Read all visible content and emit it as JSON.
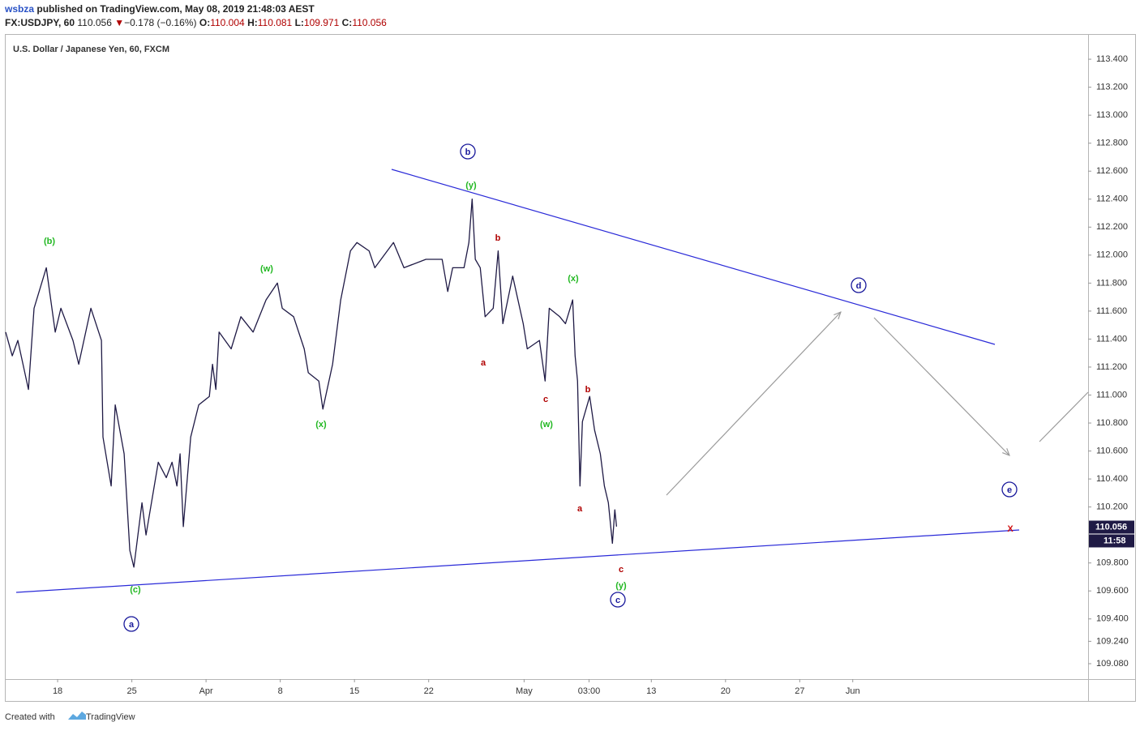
{
  "header": {
    "author": "wsbza",
    "published": "published on TradingView.com, May 08, 2019 21:48:03 AEST",
    "symbol": "FX:USDJPY, 60",
    "last": "110.056",
    "arrow": "▼",
    "change": "−0.178 (−0.16%)",
    "ohlc": [
      {
        "label": "O:",
        "value": "110.004"
      },
      {
        "label": "H:",
        "value": "110.081"
      },
      {
        "label": "L:",
        "value": "109.971"
      },
      {
        "label": "C:",
        "value": "110.056"
      }
    ]
  },
  "footer": {
    "created": "Created with",
    "brand": "TradingView"
  },
  "chart_data": {
    "type": "line",
    "title": "U.S. Dollar / Japanese Yen, 60, FXCM",
    "xlim": [
      13.1,
      115.2
    ],
    "xticks": [
      18,
      25,
      {
        "value": 32,
        "label": "Apr"
      },
      {
        "value": 39,
        "label": "8"
      },
      {
        "value": 46,
        "label": "15"
      },
      {
        "value": 53,
        "label": "22"
      },
      {
        "value": 62,
        "label": "May"
      },
      {
        "value": 68.125,
        "label": "03:00"
      },
      {
        "value": 74,
        "label": "13"
      },
      {
        "value": 81,
        "label": "20"
      },
      {
        "value": 88,
        "label": "27"
      },
      {
        "value": 93,
        "label": "Jun"
      }
    ],
    "ylim": [
      108.97,
      113.58
    ],
    "yticks": [
      {
        "value": 113.4,
        "label": "113.400"
      },
      {
        "value": 113.2,
        "label": "113.200"
      },
      {
        "value": 113.0,
        "label": "113.000"
      },
      {
        "value": 112.8,
        "label": "112.800"
      },
      {
        "value": 112.6,
        "label": "112.600"
      },
      {
        "value": 112.4,
        "label": "112.400"
      },
      {
        "value": 112.2,
        "label": "112.200"
      },
      {
        "value": 112.0,
        "label": "112.000"
      },
      {
        "value": 111.8,
        "label": "111.800"
      },
      {
        "value": 111.6,
        "label": "111.600"
      },
      {
        "value": 111.4,
        "label": "111.400"
      },
      {
        "value": 111.2,
        "label": "111.200"
      },
      {
        "value": 111.0,
        "label": "111.000"
      },
      {
        "value": 110.8,
        "label": "110.800"
      },
      {
        "value": 110.6,
        "label": "110.600"
      },
      {
        "value": 110.4,
        "label": "110.400"
      },
      {
        "value": 110.2,
        "label": "110.200"
      },
      {
        "value": 109.8,
        "label": "109.800"
      },
      {
        "value": 109.6,
        "label": "109.600"
      },
      {
        "value": 109.4,
        "label": "109.400"
      },
      {
        "value": 109.24,
        "label": "109.240"
      },
      {
        "value": 109.08,
        "label": "109.080"
      }
    ],
    "grid": false,
    "last_price": {
      "value": 110.056,
      "label": "110.056"
    },
    "countdown": "11:58",
    "series": [
      {
        "name": "USDJPY",
        "color": "#1f1a45",
        "x": [
          13.1,
          13.72,
          14.25,
          15.25,
          15.78,
          16.93,
          17.77,
          18.31,
          19.45,
          19.99,
          21.14,
          22.13,
          22.28,
          23.05,
          23.43,
          24.27,
          24.81,
          25.19,
          25.96,
          26.34,
          27.49,
          28.25,
          28.79,
          29.25,
          29.55,
          29.86,
          30.55,
          31.31,
          32.31,
          32.61,
          32.92,
          33.23,
          34.37,
          35.29,
          36.44,
          37.66,
          38.73,
          39.19,
          40.26,
          41.26,
          41.64,
          42.64,
          43.02,
          43.94,
          44.7,
          45.62,
          46.23,
          47.38,
          47.92,
          49.68,
          50.67,
          52.74,
          54.27,
          54.8,
          55.26,
          56.33,
          56.79,
          57.1,
          57.4,
          57.86,
          58.32,
          59.09,
          59.55,
          60.0,
          60.92,
          61.92,
          62.3,
          63.45,
          63.98,
          64.37,
          65.36,
          65.9,
          66.58,
          66.81,
          67.04,
          67.27,
          67.5,
          68.19,
          68.65,
          69.19,
          69.57,
          69.95,
          70.33,
          70.56,
          70.72
        ],
        "values": [
          111.45,
          111.28,
          111.39,
          111.04,
          111.62,
          111.91,
          111.45,
          111.62,
          111.39,
          111.22,
          111.62,
          111.39,
          110.7,
          110.35,
          110.93,
          110.58,
          109.89,
          109.77,
          110.23,
          110.0,
          110.52,
          110.41,
          110.52,
          110.35,
          110.58,
          110.06,
          110.7,
          110.93,
          110.99,
          111.22,
          111.04,
          111.45,
          111.33,
          111.56,
          111.45,
          111.68,
          111.8,
          111.62,
          111.56,
          111.33,
          111.16,
          111.1,
          110.9,
          111.22,
          111.68,
          112.03,
          112.09,
          112.03,
          111.91,
          112.09,
          111.91,
          111.97,
          111.97,
          111.74,
          111.91,
          111.91,
          112.09,
          112.4,
          111.97,
          111.91,
          111.56,
          111.62,
          112.03,
          111.51,
          111.85,
          111.51,
          111.33,
          111.39,
          111.1,
          111.62,
          111.56,
          111.51,
          111.68,
          111.28,
          111.1,
          110.35,
          110.81,
          110.99,
          110.75,
          110.58,
          110.35,
          110.23,
          109.94,
          110.18,
          110.06
        ]
      }
    ],
    "annotations": [
      {
        "text": "(b)",
        "color": "#22b822"
      },
      {
        "text": "(c)",
        "color": "#22b822"
      },
      {
        "text": "a",
        "color": "#1a1a9c",
        "circled": true
      },
      {
        "text": "(w)",
        "color": "#22b822"
      },
      {
        "text": "(x)",
        "color": "#22b822"
      },
      {
        "text": "b",
        "color": "#1a1a9c",
        "circled": true
      },
      {
        "text": "(y)",
        "color": "#22b822"
      },
      {
        "text": "b",
        "color": "#b00000"
      },
      {
        "text": "a",
        "color": "#b00000"
      },
      {
        "text": "(x)",
        "color": "#22b822"
      },
      {
        "text": "c",
        "color": "#b00000"
      },
      {
        "text": "(w)",
        "color": "#22b822"
      },
      {
        "text": "b",
        "color": "#b00000"
      },
      {
        "text": "a",
        "color": "#b00000"
      },
      {
        "text": "c",
        "color": "#b00000"
      },
      {
        "text": "(y)",
        "color": "#22b822"
      },
      {
        "text": "c",
        "color": "#1a1a9c",
        "circled": true
      },
      {
        "text": "d",
        "color": "#1a1a9c",
        "circled": true
      },
      {
        "text": "e",
        "color": "#1a1a9c",
        "circled": true
      },
      {
        "text": "X",
        "color": "#d01010"
      }
    ]
  }
}
